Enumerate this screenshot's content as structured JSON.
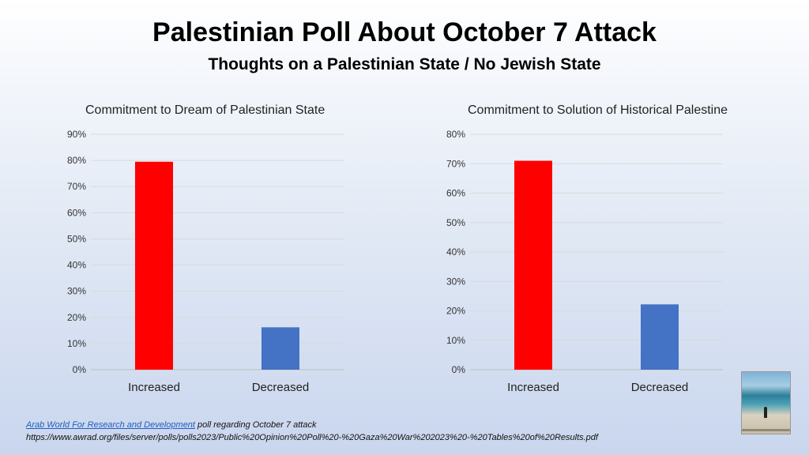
{
  "header": {
    "title": "Palestinian Poll About October 7 Attack",
    "subtitle": "Thoughts on a Palestinian State / No Jewish State"
  },
  "chart_data": [
    {
      "type": "bar",
      "title": "Commitment to Dream of Palestinian State",
      "categories": [
        "Increased",
        "Decreased"
      ],
      "values": [
        79.5,
        16.2
      ],
      "colors": [
        "#ff0000",
        "#4472c4"
      ],
      "ylim": [
        0,
        90
      ],
      "yticks": [
        "0%",
        "10%",
        "20%",
        "30%",
        "40%",
        "50%",
        "60%",
        "70%",
        "80%",
        "90%"
      ],
      "grid": true,
      "xlabel": "",
      "ylabel": ""
    },
    {
      "type": "bar",
      "title": "Commitment to Solution of Historical Palestine",
      "categories": [
        "Increased",
        "Decreased"
      ],
      "values": [
        71.0,
        22.2
      ],
      "colors": [
        "#ff0000",
        "#4472c4"
      ],
      "ylim": [
        0,
        80
      ],
      "yticks": [
        "0%",
        "10%",
        "20%",
        "30%",
        "40%",
        "50%",
        "60%",
        "70%",
        "80%"
      ],
      "grid": true,
      "xlabel": "",
      "ylabel": ""
    }
  ],
  "footer": {
    "source_link": "Arab World For Research and Development",
    "source_text": " poll regarding October 7 attack",
    "url": "https://www.awrad.org/files/server/polls/polls2023/Public%20Opinion%20Poll%20-%20Gaza%20War%202023%20-%20Tables%20of%20Results.pdf"
  }
}
